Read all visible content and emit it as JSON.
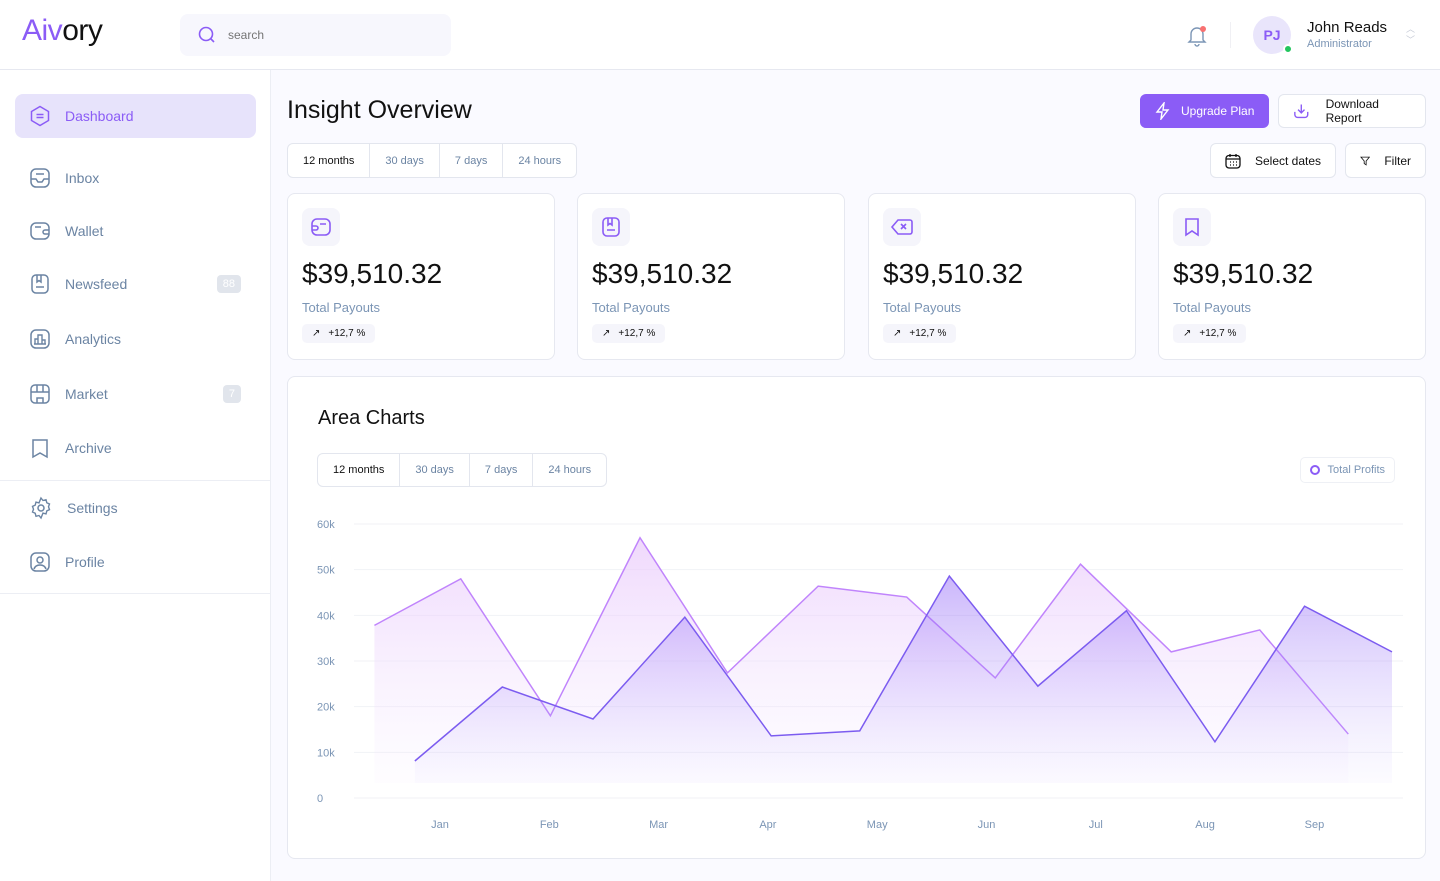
{
  "app": {
    "logo_a": "Aiv",
    "logo_b": "ory"
  },
  "search": {
    "placeholder": "search"
  },
  "user": {
    "initials": "PJ",
    "name": "John Reads",
    "role": "Administrator"
  },
  "sidebar": {
    "items": [
      {
        "label": "Dashboard",
        "icon": "dashboard-icon"
      },
      {
        "label": "Inbox",
        "icon": "inbox-icon"
      },
      {
        "label": "Wallet",
        "icon": "wallet-icon"
      },
      {
        "label": "Newsfeed",
        "icon": "newsfeed-icon",
        "badge": "88"
      },
      {
        "label": "Analytics",
        "icon": "analytics-icon"
      },
      {
        "label": "Market",
        "icon": "market-icon",
        "badge": "7"
      },
      {
        "label": "Archive",
        "icon": "archive-icon"
      },
      {
        "label": "Settings",
        "icon": "settings-icon"
      },
      {
        "label": "Profile",
        "icon": "profile-icon"
      }
    ]
  },
  "page": {
    "title": "Insight Overview",
    "upgrade": "Upgrade Plan",
    "download": "Download Report",
    "select_dates": "Select dates",
    "filter": "Filter",
    "ranges": [
      "12 months",
      "30 days",
      "7 days",
      "24 hours"
    ]
  },
  "cards": [
    {
      "value": "$39,510.32",
      "label": "Total Payouts",
      "change": "+12,7 %"
    },
    {
      "value": "$39,510.32",
      "label": "Total Payouts",
      "change": "+12,7 %"
    },
    {
      "value": "$39,510.32",
      "label": "Total Payouts",
      "change": "+12,7 %"
    },
    {
      "value": "$39,510.32",
      "label": "Total Payouts",
      "change": "+12,7 %"
    }
  ],
  "colors": {
    "accent": "#8b5cf6",
    "light": "#c084fc"
  },
  "chart_data": {
    "type": "area",
    "title": "Area Charts",
    "ranges": [
      "12 months",
      "30 days",
      "7 days",
      "24 hours"
    ],
    "legend": "Total Profits",
    "categories": [
      "Jan",
      "Feb",
      "Mar",
      "Apr",
      "May",
      "Jun",
      "Jul",
      "Aug",
      "Sep"
    ],
    "yticks": [
      "0",
      "10k",
      "20k",
      "30k",
      "40k",
      "50k",
      "60k"
    ],
    "ylim": [
      0,
      60000
    ],
    "series": [
      {
        "name": "series-light",
        "x": [
          -0.6,
          0.19,
          1.01,
          1.83,
          2.63,
          3.46,
          4.27,
          5.08,
          5.86,
          6.69,
          7.5,
          8.31
        ],
        "values": [
          37800,
          48000,
          18000,
          57000,
          27400,
          46400,
          44000,
          26300,
          51200,
          32000,
          36800,
          14000
        ]
      },
      {
        "name": "series-dark",
        "x": [
          -0.23,
          0.57,
          1.4,
          2.24,
          3.03,
          3.84,
          4.66,
          5.47,
          6.28,
          7.09,
          7.91,
          8.71
        ],
        "values": [
          8100,
          24300,
          17300,
          39600,
          13600,
          14700,
          48600,
          24500,
          41000,
          12300,
          42000,
          32000
        ]
      }
    ]
  }
}
